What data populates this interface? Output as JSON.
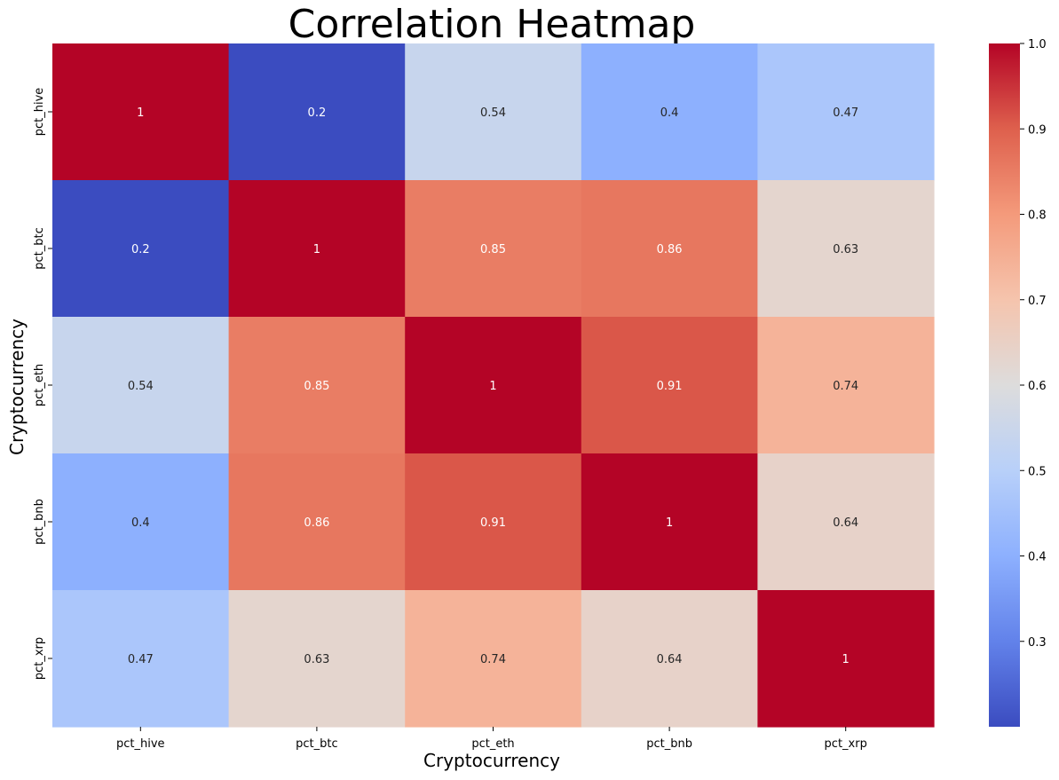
{
  "chart_data": {
    "type": "heatmap",
    "title": "Correlation Heatmap",
    "xlabel": "Cryptocurrency",
    "ylabel": "Cryptocurrency",
    "x_categories": [
      "pct_hive",
      "pct_btc",
      "pct_eth",
      "pct_bnb",
      "pct_xrp"
    ],
    "y_categories": [
      "pct_hive",
      "pct_btc",
      "pct_eth",
      "pct_bnb",
      "pct_xrp"
    ],
    "values": [
      [
        1,
        0.2,
        0.54,
        0.4,
        0.47
      ],
      [
        0.2,
        1,
        0.85,
        0.86,
        0.63
      ],
      [
        0.54,
        0.85,
        1,
        0.91,
        0.74
      ],
      [
        0.4,
        0.86,
        0.91,
        1,
        0.64
      ],
      [
        0.47,
        0.63,
        0.74,
        0.64,
        1
      ]
    ],
    "annotations": [
      [
        "1",
        "0.2",
        "0.54",
        "0.4",
        "0.47"
      ],
      [
        "0.2",
        "1",
        "0.85",
        "0.86",
        "0.63"
      ],
      [
        "0.54",
        "0.85",
        "1",
        "0.91",
        "0.74"
      ],
      [
        "0.4",
        "0.86",
        "0.91",
        "1",
        "0.64"
      ],
      [
        "0.47",
        "0.63",
        "0.74",
        "0.64",
        "1"
      ]
    ],
    "colormap": "coolwarm",
    "vmin": 0.2,
    "vmax": 1.0,
    "colorbar_ticks": [
      "0.3",
      "0.4",
      "0.5",
      "0.6",
      "0.7",
      "0.8",
      "0.9",
      "1.0"
    ],
    "grid": false,
    "legend": "colorbar-right"
  }
}
